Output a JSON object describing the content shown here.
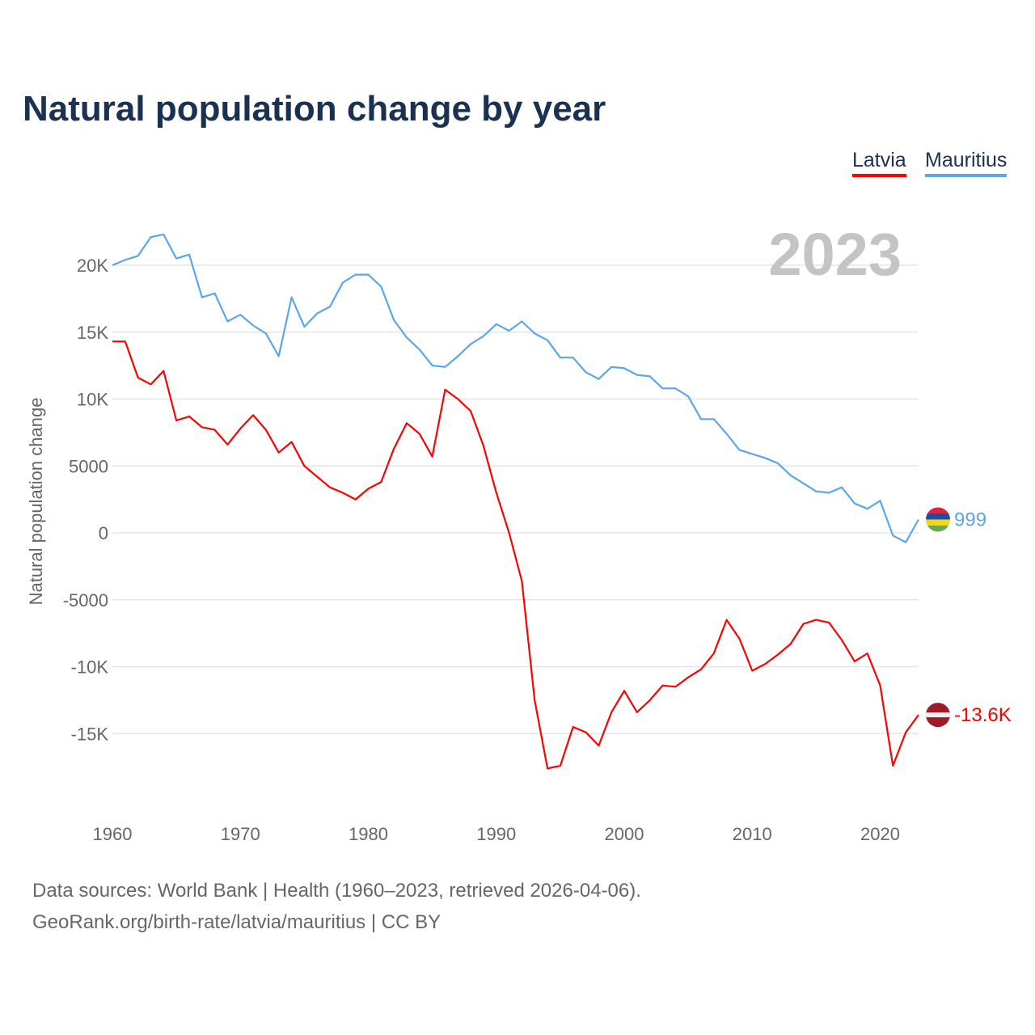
{
  "title": "Natural population change by year",
  "footer": {
    "sources": "Data sources: World Bank | Health (1960–2023, retrieved 2026-04-06).",
    "credit": "GeoRank.org/birth-rate/latvia/mauritius | CC BY"
  },
  "chart_data": {
    "type": "line",
    "title": "Natural population change by year",
    "ylabel": "Natural population change",
    "xlabel": "",
    "year_label": "2023",
    "x": [
      1960,
      1961,
      1962,
      1963,
      1964,
      1965,
      1966,
      1967,
      1968,
      1969,
      1970,
      1971,
      1972,
      1973,
      1974,
      1975,
      1976,
      1977,
      1978,
      1979,
      1980,
      1981,
      1982,
      1983,
      1984,
      1985,
      1986,
      1987,
      1988,
      1989,
      1990,
      1991,
      1992,
      1993,
      1994,
      1995,
      1996,
      1997,
      1998,
      1999,
      2000,
      2001,
      2002,
      2003,
      2004,
      2005,
      2006,
      2007,
      2008,
      2009,
      2010,
      2011,
      2012,
      2013,
      2014,
      2015,
      2016,
      2017,
      2018,
      2019,
      2020,
      2021,
      2022,
      2023
    ],
    "xticks": [
      1960,
      1970,
      1980,
      1990,
      2000,
      2010,
      2020
    ],
    "xtick_labels": [
      "1960",
      "1970",
      "1980",
      "1990",
      "2000",
      "2010",
      "2020"
    ],
    "yticks": [
      20000,
      15000,
      10000,
      5000,
      0,
      -5000,
      -10000,
      -15000
    ],
    "ytick_labels": [
      "20K",
      "15K",
      "10K",
      "5000",
      "0",
      "-5000",
      "-10K",
      "-15K"
    ],
    "ylim": [
      -20000,
      23500
    ],
    "xlim": [
      1960,
      2023
    ],
    "grid": true,
    "legend": "top-right",
    "series": [
      {
        "name": "Latvia",
        "color": "#ff0000",
        "end_label": "-13.6K",
        "values": [
          14300,
          14300,
          11600,
          11100,
          12100,
          8400,
          8700,
          7900,
          7700,
          6600,
          7800,
          8800,
          7700,
          6000,
          6800,
          5000,
          4200,
          3400,
          3000,
          2500,
          3300,
          3800,
          6300,
          8200,
          7400,
          5700,
          10700,
          10000,
          9100,
          6500,
          3000,
          0,
          -3600,
          -12500,
          -17600,
          -17400,
          -14500,
          -14900,
          -15900,
          -13400,
          -11800,
          -13400,
          -12500,
          -11400,
          -11500,
          -10800,
          -10200,
          -9000,
          -6500,
          -7900,
          -10300,
          -9800,
          -9100,
          -8300,
          -6800,
          -6500,
          -6700,
          -8000,
          -9600,
          -9000,
          -11400,
          -17400,
          -14900,
          -13600
        ]
      },
      {
        "name": "Mauritius",
        "color": "#5ba6ea",
        "end_label": "999",
        "values": [
          20000,
          20400,
          20700,
          22100,
          22300,
          20500,
          20800,
          17600,
          17900,
          15800,
          16300,
          15500,
          14900,
          13200,
          17600,
          15400,
          16400,
          16900,
          18700,
          19300,
          19300,
          18400,
          15900,
          14600,
          13700,
          12500,
          12400,
          13200,
          14100,
          14700,
          15600,
          15100,
          15800,
          14900,
          14400,
          13100,
          13100,
          12000,
          11500,
          12400,
          12300,
          11800,
          11700,
          10800,
          10800,
          10200,
          8500,
          8500,
          7400,
          6200,
          5900,
          5600,
          5200,
          4300,
          3700,
          3100,
          3000,
          3400,
          2200,
          1800,
          2400,
          -200,
          -700,
          999
        ]
      }
    ]
  }
}
